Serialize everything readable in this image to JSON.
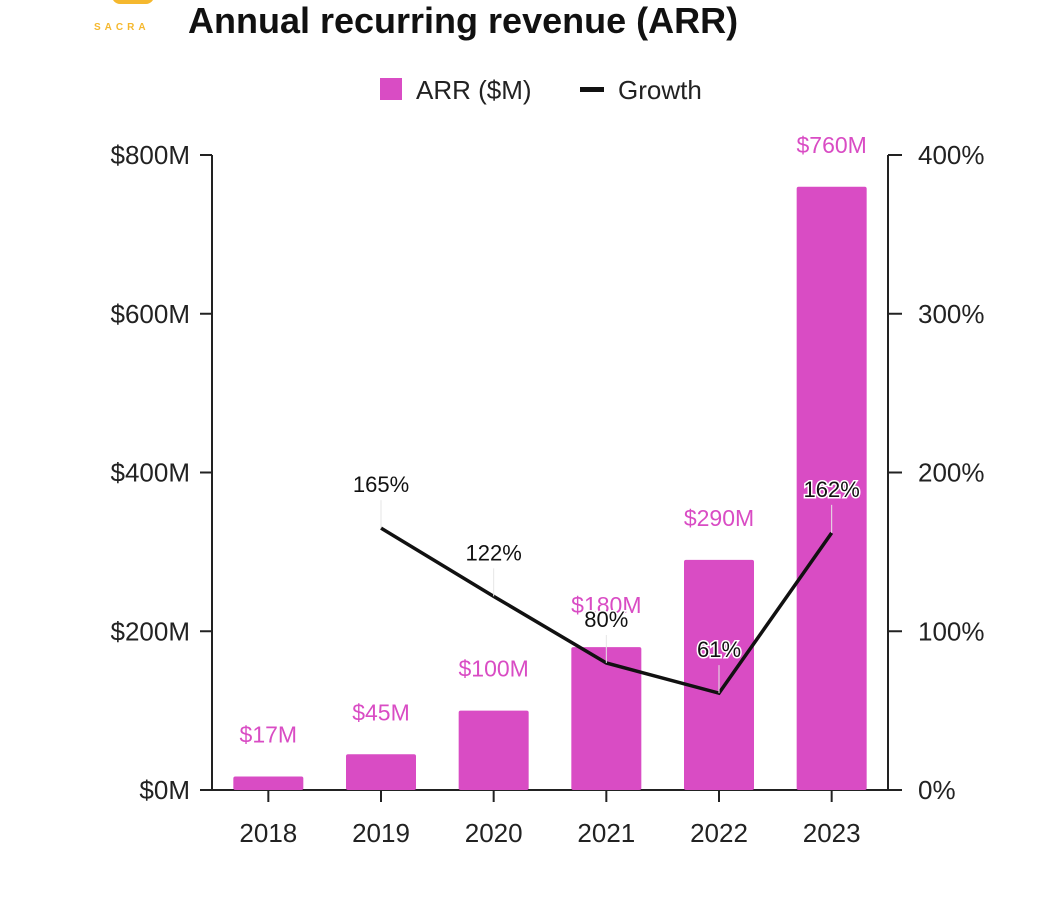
{
  "brand": {
    "logo_text": "SACRA",
    "logo_color": "#F5B82E"
  },
  "chart_data": {
    "type": "bar",
    "title": "Annual recurring revenue (ARR)",
    "categories": [
      "2018",
      "2019",
      "2020",
      "2021",
      "2022",
      "2023"
    ],
    "series": [
      {
        "name": "ARR ($M)",
        "kind": "bar",
        "axis": "left",
        "color": "#D94CC4",
        "values": [
          17,
          45,
          100,
          180,
          290,
          760
        ],
        "labels": [
          "$17M",
          "$45M",
          "$100M",
          "$180M",
          "$290M",
          "$760M"
        ]
      },
      {
        "name": "Growth",
        "kind": "line",
        "axis": "right",
        "color": "#111111",
        "values": [
          null,
          165,
          122,
          80,
          61,
          162
        ],
        "labels": [
          "",
          "165%",
          "122%",
          "80%",
          "61%",
          "162%"
        ]
      }
    ],
    "y_left": {
      "ticks": [
        0,
        200,
        400,
        600,
        800
      ],
      "tick_labels": [
        "$0M",
        "$200M",
        "$400M",
        "$600M",
        "$800M"
      ],
      "range": [
        0,
        800
      ]
    },
    "y_right": {
      "ticks": [
        0,
        100,
        200,
        300,
        400
      ],
      "tick_labels": [
        "0%",
        "100%",
        "200%",
        "300%",
        "400%"
      ],
      "range": [
        0,
        400
      ]
    },
    "legend": {
      "placement": "top-center"
    },
    "grid": false
  }
}
